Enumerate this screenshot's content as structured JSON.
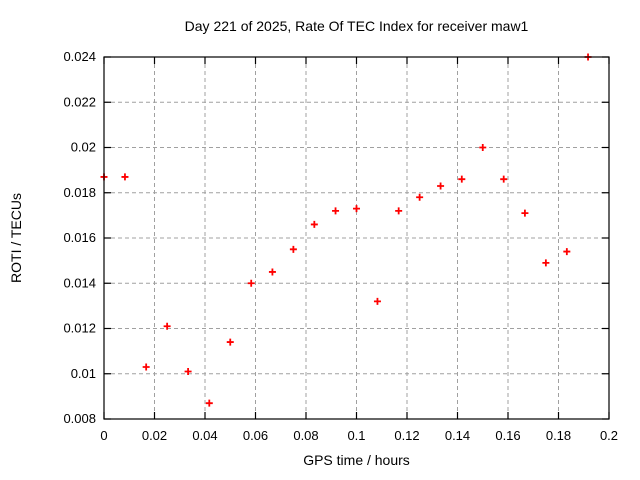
{
  "chart_data": {
    "type": "scatter",
    "title": "Day 221 of 2025, Rate Of TEC Index for receiver maw1",
    "xlabel": "GPS time / hours",
    "ylabel": "ROTI / TECUs",
    "xlim": [
      0,
      0.2
    ],
    "ylim": [
      0.008,
      0.024
    ],
    "xticks": [
      0,
      0.02,
      0.04,
      0.06,
      0.08,
      0.1,
      0.12,
      0.14,
      0.16,
      0.18,
      0.2
    ],
    "xtick_labels": [
      "0",
      "0.02",
      "0.04",
      "0.06",
      "0.08",
      "0.1",
      "0.12",
      "0.14",
      "0.16",
      "0.18",
      "0.2"
    ],
    "yticks": [
      0.008,
      0.01,
      0.012,
      0.014,
      0.016,
      0.018,
      0.02,
      0.022,
      0.024
    ],
    "ytick_labels": [
      "0.008",
      "0.01",
      "0.012",
      "0.014",
      "0.016",
      "0.018",
      "0.02",
      "0.022",
      "0.024"
    ],
    "grid": true,
    "legend": "none",
    "marker": {
      "style": "plus",
      "color": "#ff0000",
      "size": 7
    },
    "colors": {
      "background": "#ffffff",
      "border": "#000000",
      "grid": "#a0a0a0",
      "text": "#000000",
      "marker": "#ff0000"
    },
    "series": [
      {
        "points": [
          [
            0.0,
            0.0187
          ],
          [
            0.0083,
            0.0187
          ],
          [
            0.0167,
            0.0103
          ],
          [
            0.025,
            0.0121
          ],
          [
            0.0333,
            0.0101
          ],
          [
            0.0417,
            0.0087
          ],
          [
            0.05,
            0.0114
          ],
          [
            0.0583,
            0.014
          ],
          [
            0.0667,
            0.0145
          ],
          [
            0.075,
            0.0155
          ],
          [
            0.0833,
            0.0166
          ],
          [
            0.0917,
            0.0172
          ],
          [
            0.1,
            0.0173
          ],
          [
            0.1083,
            0.0132
          ],
          [
            0.1167,
            0.0172
          ],
          [
            0.125,
            0.0178
          ],
          [
            0.1333,
            0.0183
          ],
          [
            0.1417,
            0.0186
          ],
          [
            0.15,
            0.02
          ],
          [
            0.1583,
            0.0186
          ],
          [
            0.1667,
            0.0171
          ],
          [
            0.175,
            0.0149
          ],
          [
            0.1833,
            0.0154
          ],
          [
            0.1917,
            0.024
          ]
        ]
      }
    ]
  }
}
